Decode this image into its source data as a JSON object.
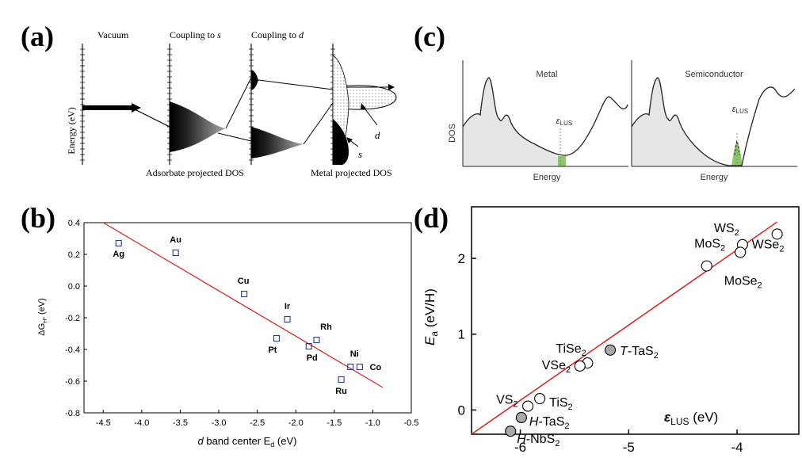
{
  "panel_labels": {
    "a": "(a)",
    "b": "(b)",
    "c": "(c)",
    "d": "(d)"
  },
  "colors": {
    "fit_line": "#d42a2a",
    "marker_b": "#2b3a8f",
    "green_fill": "#8cc96b",
    "dos_fill": "#e6e6e6",
    "gray_marker": "#a8a8a8"
  },
  "chart_data": [
    {
      "panel": "a",
      "type": "diagram",
      "stage_labels": {
        "vacuum": "Vacuum",
        "coupling_s_prefix": "Coupling to ",
        "coupling_s_var": "s",
        "coupling_d_prefix": "Coupling to ",
        "coupling_d_var": "d"
      },
      "ylabel": "Energy (eV)",
      "bottom_labels": {
        "adsorbate": "Adsorbate projected DOS",
        "metal": "Metal projected DOS"
      },
      "band_labels": {
        "d": "d",
        "s": "s"
      }
    },
    {
      "panel": "b",
      "type": "scatter",
      "xlabel_prefix": "d",
      "xlabel_main": " band center E",
      "xlabel_sub": "d",
      "xlabel_unit": " (eV)",
      "ylabel_main": "ΔG",
      "ylabel_sub": "H*",
      "ylabel_unit": " (eV)",
      "xlim": [
        -4.75,
        -0.5
      ],
      "ylim": [
        -0.8,
        0.4
      ],
      "xticks": [
        "-4.5",
        "-4.0",
        "-3.5",
        "-3.0",
        "-2.5",
        "-2.0",
        "-1.5",
        "-1.0",
        "-0.5"
      ],
      "yticks": [
        "0.4",
        "0.2",
        "0.0",
        "-0.2",
        "-0.4",
        "-0.6",
        "-0.8"
      ],
      "points": [
        {
          "label": "Ag",
          "x": -4.3,
          "y": 0.27
        },
        {
          "label": "Au",
          "x": -3.56,
          "y": 0.21
        },
        {
          "label": "Cu",
          "x": -2.67,
          "y": -0.05
        },
        {
          "label": "Ir",
          "x": -2.11,
          "y": -0.21
        },
        {
          "label": "Pt",
          "x": -2.25,
          "y": -0.33
        },
        {
          "label": "Rh",
          "x": -1.73,
          "y": -0.34
        },
        {
          "label": "Pd",
          "x": -1.83,
          "y": -0.38
        },
        {
          "label": "Ni",
          "x": -1.29,
          "y": -0.51
        },
        {
          "label": "Co",
          "x": -1.17,
          "y": -0.51
        },
        {
          "label": "Ru",
          "x": -1.41,
          "y": -0.59
        }
      ],
      "fit_line": {
        "x": [
          -4.5,
          -0.87
        ],
        "y": [
          0.4,
          -0.64
        ]
      }
    },
    {
      "panel": "c",
      "type": "line",
      "ylabel": "DOS",
      "subplots": [
        {
          "title": "Metal",
          "xlabel": "Energy",
          "marker_symbol": "ε",
          "marker_sub": "LUS"
        },
        {
          "title": "Semiconductor",
          "xlabel": "Energy",
          "marker_symbol": "ε",
          "marker_sub": "LUS"
        }
      ]
    },
    {
      "panel": "d",
      "type": "scatter",
      "ylabel_main": "E",
      "ylabel_sub": "a",
      "ylabel_unit": " (eV/H)",
      "xlabel_symbol": "ε",
      "xlabel_sub": "LUS",
      "xlabel_unit": " (eV)",
      "xlim": [
        -6.45,
        -3.43
      ],
      "ylim": [
        -0.32,
        2.68
      ],
      "xticks": [
        -6,
        -5,
        -4
      ],
      "yticks": [
        0,
        1,
        2
      ],
      "points": [
        {
          "label_prefix": "",
          "label_main": "WS",
          "label_sub": "2",
          "x": -3.95,
          "y": 2.18,
          "filled": false
        },
        {
          "label_prefix": "",
          "label_main": "WSe",
          "label_sub": "2",
          "x": -3.63,
          "y": 2.32,
          "filled": false
        },
        {
          "label_prefix": "",
          "label_main": "MoS",
          "label_sub": "2",
          "x": -3.97,
          "y": 2.08,
          "filled": false
        },
        {
          "label_prefix": "",
          "label_main": "MoSe",
          "label_sub": "2",
          "x": -4.28,
          "y": 1.9,
          "filled": false
        },
        {
          "label_prefix": "",
          "label_main": "TiSe",
          "label_sub": "2",
          "x": -5.38,
          "y": 0.62,
          "filled": false
        },
        {
          "label_prefix": "",
          "label_main": "VSe",
          "label_sub": "2",
          "x": -5.45,
          "y": 0.58,
          "filled": false
        },
        {
          "label_prefix": "T",
          "label_main": "-TaS",
          "label_sub": "2",
          "x": -5.17,
          "y": 0.79,
          "filled": true
        },
        {
          "label_prefix": "",
          "label_main": "VS",
          "label_sub": "2",
          "x": -5.93,
          "y": 0.05,
          "filled": false
        },
        {
          "label_prefix": "",
          "label_main": "TiS",
          "label_sub": "2",
          "x": -5.82,
          "y": 0.15,
          "filled": false
        },
        {
          "label_prefix": "H",
          "label_main": "-TaS",
          "label_sub": "2",
          "x": -5.99,
          "y": -0.1,
          "filled": true
        },
        {
          "label_prefix": "H",
          "label_main": "-NbS",
          "label_sub": "2",
          "x": -6.09,
          "y": -0.28,
          "filled": true
        }
      ],
      "fit_line": {
        "x": [
          -6.45,
          -3.63
        ],
        "y": [
          -0.32,
          2.48
        ]
      }
    }
  ]
}
